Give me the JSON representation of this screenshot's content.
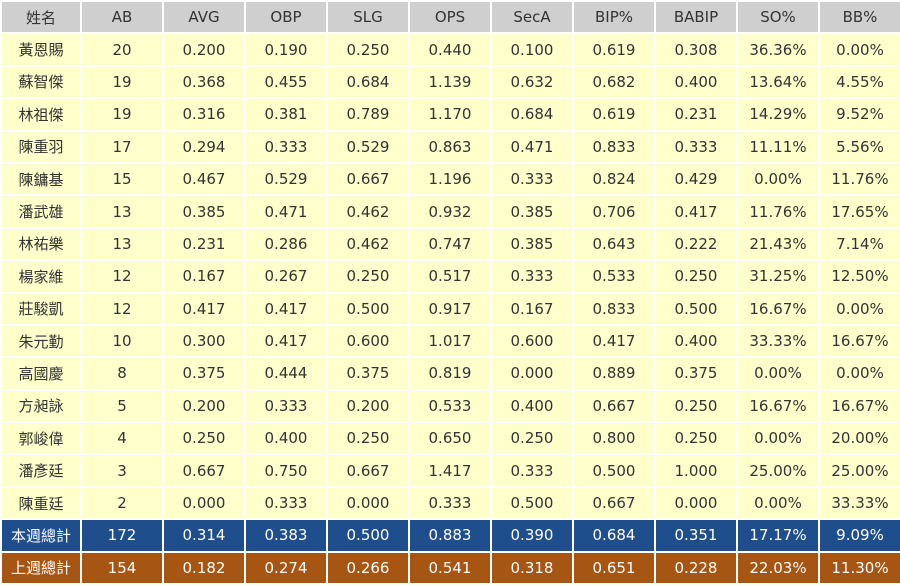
{
  "columns": [
    "姓名",
    "AB",
    "AVG",
    "OBP",
    "SLG",
    "OPS",
    "SecA",
    "BIP%",
    "BABIP",
    "SO%",
    "BB%"
  ],
  "rows": [
    [
      "黃恩賜",
      "20",
      "0.200",
      "0.190",
      "0.250",
      "0.440",
      "0.100",
      "0.619",
      "0.308",
      "36.36%",
      "0.00%"
    ],
    [
      "蘇智傑",
      "19",
      "0.368",
      "0.455",
      "0.684",
      "1.139",
      "0.632",
      "0.682",
      "0.400",
      "13.64%",
      "4.55%"
    ],
    [
      "林祖傑",
      "19",
      "0.316",
      "0.381",
      "0.789",
      "1.170",
      "0.684",
      "0.619",
      "0.231",
      "14.29%",
      "9.52%"
    ],
    [
      "陳重羽",
      "17",
      "0.294",
      "0.333",
      "0.529",
      "0.863",
      "0.471",
      "0.833",
      "0.333",
      "11.11%",
      "5.56%"
    ],
    [
      "陳鏞基",
      "15",
      "0.467",
      "0.529",
      "0.667",
      "1.196",
      "0.333",
      "0.824",
      "0.429",
      "0.00%",
      "11.76%"
    ],
    [
      "潘武雄",
      "13",
      "0.385",
      "0.471",
      "0.462",
      "0.932",
      "0.385",
      "0.706",
      "0.417",
      "11.76%",
      "17.65%"
    ],
    [
      "林祐樂",
      "13",
      "0.231",
      "0.286",
      "0.462",
      "0.747",
      "0.385",
      "0.643",
      "0.222",
      "21.43%",
      "7.14%"
    ],
    [
      "楊家維",
      "12",
      "0.167",
      "0.267",
      "0.250",
      "0.517",
      "0.333",
      "0.533",
      "0.250",
      "31.25%",
      "12.50%"
    ],
    [
      "莊駿凱",
      "12",
      "0.417",
      "0.417",
      "0.500",
      "0.917",
      "0.167",
      "0.833",
      "0.500",
      "16.67%",
      "0.00%"
    ],
    [
      "朱元勤",
      "10",
      "0.300",
      "0.417",
      "0.600",
      "1.017",
      "0.600",
      "0.417",
      "0.400",
      "33.33%",
      "16.67%"
    ],
    [
      "高國慶",
      "8",
      "0.375",
      "0.444",
      "0.375",
      "0.819",
      "0.000",
      "0.889",
      "0.375",
      "0.00%",
      "0.00%"
    ],
    [
      "方昶詠",
      "5",
      "0.200",
      "0.333",
      "0.200",
      "0.533",
      "0.400",
      "0.667",
      "0.250",
      "16.67%",
      "16.67%"
    ],
    [
      "郭峻偉",
      "4",
      "0.250",
      "0.400",
      "0.250",
      "0.650",
      "0.250",
      "0.800",
      "0.250",
      "0.00%",
      "20.00%"
    ],
    [
      "潘彥廷",
      "3",
      "0.667",
      "0.750",
      "0.667",
      "1.417",
      "0.333",
      "0.500",
      "1.000",
      "25.00%",
      "25.00%"
    ],
    [
      "陳重廷",
      "2",
      "0.000",
      "0.333",
      "0.000",
      "0.333",
      "0.500",
      "0.667",
      "0.000",
      "0.00%",
      "33.33%"
    ]
  ],
  "totals": {
    "this_week": [
      "本週總計",
      "172",
      "0.314",
      "0.383",
      "0.500",
      "0.883",
      "0.390",
      "0.684",
      "0.351",
      "17.17%",
      "9.09%"
    ],
    "last_week": [
      "上週總計",
      "154",
      "0.182",
      "0.274",
      "0.266",
      "0.541",
      "0.318",
      "0.651",
      "0.228",
      "22.03%",
      "11.30%"
    ]
  },
  "colors": {
    "header_bg": "#cfcfcf",
    "row_bg": "#ffffcc",
    "this_week_bg": "#1f4e8c",
    "last_week_bg": "#a65513"
  }
}
